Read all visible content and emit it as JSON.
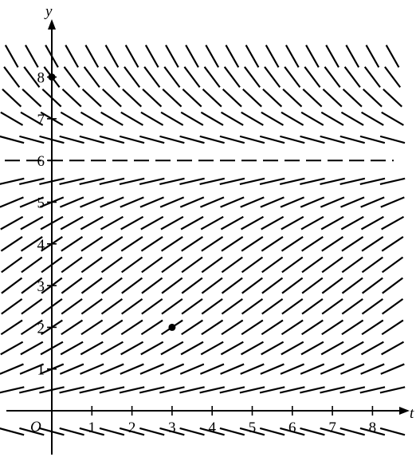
{
  "chart_data": {
    "type": "slope_field",
    "x_axis_label": "t",
    "y_axis_label": "y",
    "origin_label": "O",
    "x_ticks": [
      1,
      2,
      3,
      4,
      5,
      6,
      7,
      8
    ],
    "y_ticks": [
      1,
      2,
      3,
      4,
      5,
      6,
      7,
      8
    ],
    "x_range": [
      -1,
      8.5
    ],
    "y_range": [
      -1,
      8.5
    ],
    "equilibrium_line": {
      "y": 6,
      "style": "dashed"
    },
    "sample_x": [
      -1,
      -0.5,
      0,
      0.5,
      1,
      1.5,
      2,
      2.5,
      3,
      3.5,
      4,
      4.5,
      5,
      5.5,
      6,
      6.5,
      7,
      7.5,
      8,
      8.5
    ],
    "sample_y": [
      -0.5,
      0.5,
      1,
      1.5,
      2,
      2.5,
      3,
      3.5,
      4,
      4.5,
      5,
      5.5,
      6.5,
      7,
      7.5,
      8,
      8.5
    ],
    "points": [
      {
        "x": 3,
        "y": 2
      },
      {
        "x": 0,
        "y": 8
      }
    ]
  }
}
